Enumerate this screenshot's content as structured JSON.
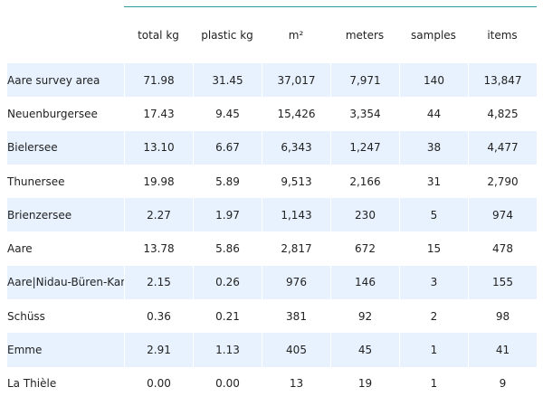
{
  "columns": [
    "total kg",
    "plastic kg",
    "m²",
    "meters",
    "samples",
    "items"
  ],
  "rows": [
    {
      "label": "Aare survey area",
      "values": [
        "71.98",
        "31.45",
        "37,017",
        "7,971",
        "140",
        "13,847"
      ]
    },
    {
      "label": "Neuenburgersee",
      "values": [
        "17.43",
        "9.45",
        "15,426",
        "3,354",
        "44",
        "4,825"
      ]
    },
    {
      "label": "Bielersee",
      "values": [
        "13.10",
        "6.67",
        "6,343",
        "1,247",
        "38",
        "4,477"
      ]
    },
    {
      "label": "Thunersee",
      "values": [
        "19.98",
        "5.89",
        "9,513",
        "2,166",
        "31",
        "2,790"
      ]
    },
    {
      "label": "Brienzersee",
      "values": [
        "2.27",
        "1.97",
        "1,143",
        "230",
        "5",
        "974"
      ]
    },
    {
      "label": "Aare",
      "values": [
        "13.78",
        "5.86",
        "2,817",
        "672",
        "15",
        "478"
      ]
    },
    {
      "label": "Aare|Nidau-Büren-Kanal",
      "values": [
        "2.15",
        "0.26",
        "976",
        "146",
        "3",
        "155"
      ]
    },
    {
      "label": "Schüss",
      "values": [
        "0.36",
        "0.21",
        "381",
        "92",
        "2",
        "98"
      ]
    },
    {
      "label": "Emme",
      "values": [
        "2.91",
        "1.13",
        "405",
        "45",
        "1",
        "41"
      ]
    },
    {
      "label": "La Thièle",
      "values": [
        "0.00",
        "0.00",
        "13",
        "19",
        "1",
        "9"
      ]
    }
  ]
}
